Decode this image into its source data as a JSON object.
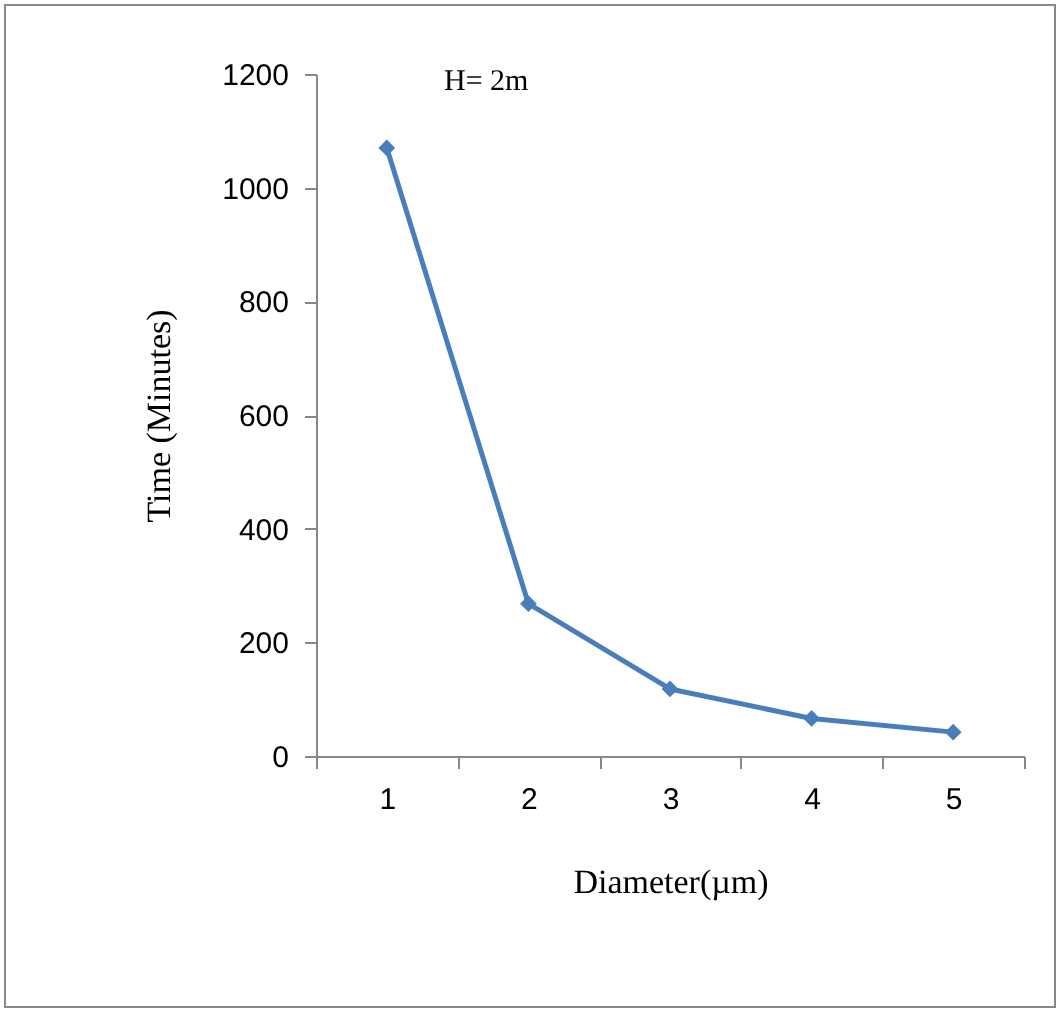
{
  "chart_data": {
    "type": "line",
    "xlabel": "Diameter(µm)",
    "ylabel": "Time (Minutes)",
    "annotations": [
      "H= 2m"
    ],
    "categories": [
      "1",
      "2",
      "3",
      "4",
      "5"
    ],
    "series": [
      {
        "color": "#4a7ebb",
        "values": [
          1070,
          268,
          118,
          66,
          42
        ]
      }
    ],
    "ylim": [
      0,
      1200
    ],
    "yticks": [
      0,
      200,
      400,
      600,
      800,
      1000,
      1200
    ],
    "grid": false,
    "legend": false,
    "marker": "diamond",
    "line_style": "solid"
  }
}
